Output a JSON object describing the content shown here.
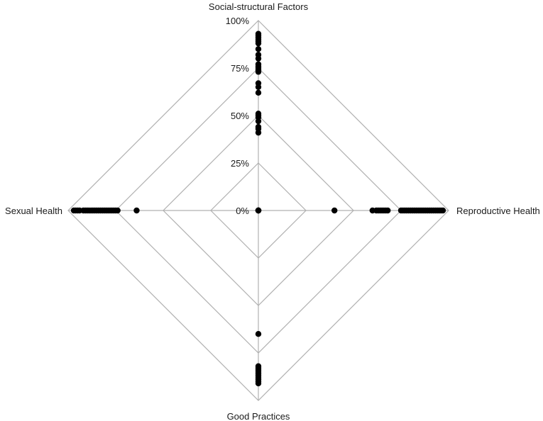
{
  "chart_data": {
    "type": "radar",
    "axes": [
      "Social-structural Factors",
      "Reproductive Health",
      "Good Practices",
      "Sexual Health"
    ],
    "tick_labels": [
      "0%",
      "25%",
      "50%",
      "75%",
      "100%"
    ],
    "ticks": [
      0,
      25,
      50,
      75,
      100
    ],
    "range": [
      0,
      100
    ],
    "grid": true,
    "legend": "none",
    "point_color": "#000000",
    "grid_color": "#b0b0b0",
    "points": {
      "Social-structural Factors": [
        0,
        0,
        41,
        43,
        44,
        47,
        49,
        50,
        51,
        62,
        65,
        67,
        73,
        74,
        75,
        76,
        77,
        80,
        82,
        85,
        88,
        89,
        90,
        91,
        92,
        93
      ],
      "Reproductive Health": [
        0,
        40,
        60,
        62,
        63,
        64,
        65,
        66,
        67,
        68,
        75,
        76,
        77,
        78,
        79,
        80,
        81,
        82,
        83,
        84,
        85,
        86,
        87,
        88,
        89,
        90,
        91,
        92,
        93,
        94,
        95,
        96,
        97
      ],
      "Good Practices": [
        0,
        65,
        82,
        83,
        84,
        85,
        86,
        87,
        88,
        89,
        90,
        91
      ],
      "Sexual Health": [
        0,
        64,
        74,
        75,
        76,
        77,
        78,
        79,
        80,
        81,
        82,
        83,
        84,
        85,
        86,
        87,
        88,
        89,
        90,
        91,
        92,
        94,
        95,
        96,
        97
      ]
    }
  }
}
